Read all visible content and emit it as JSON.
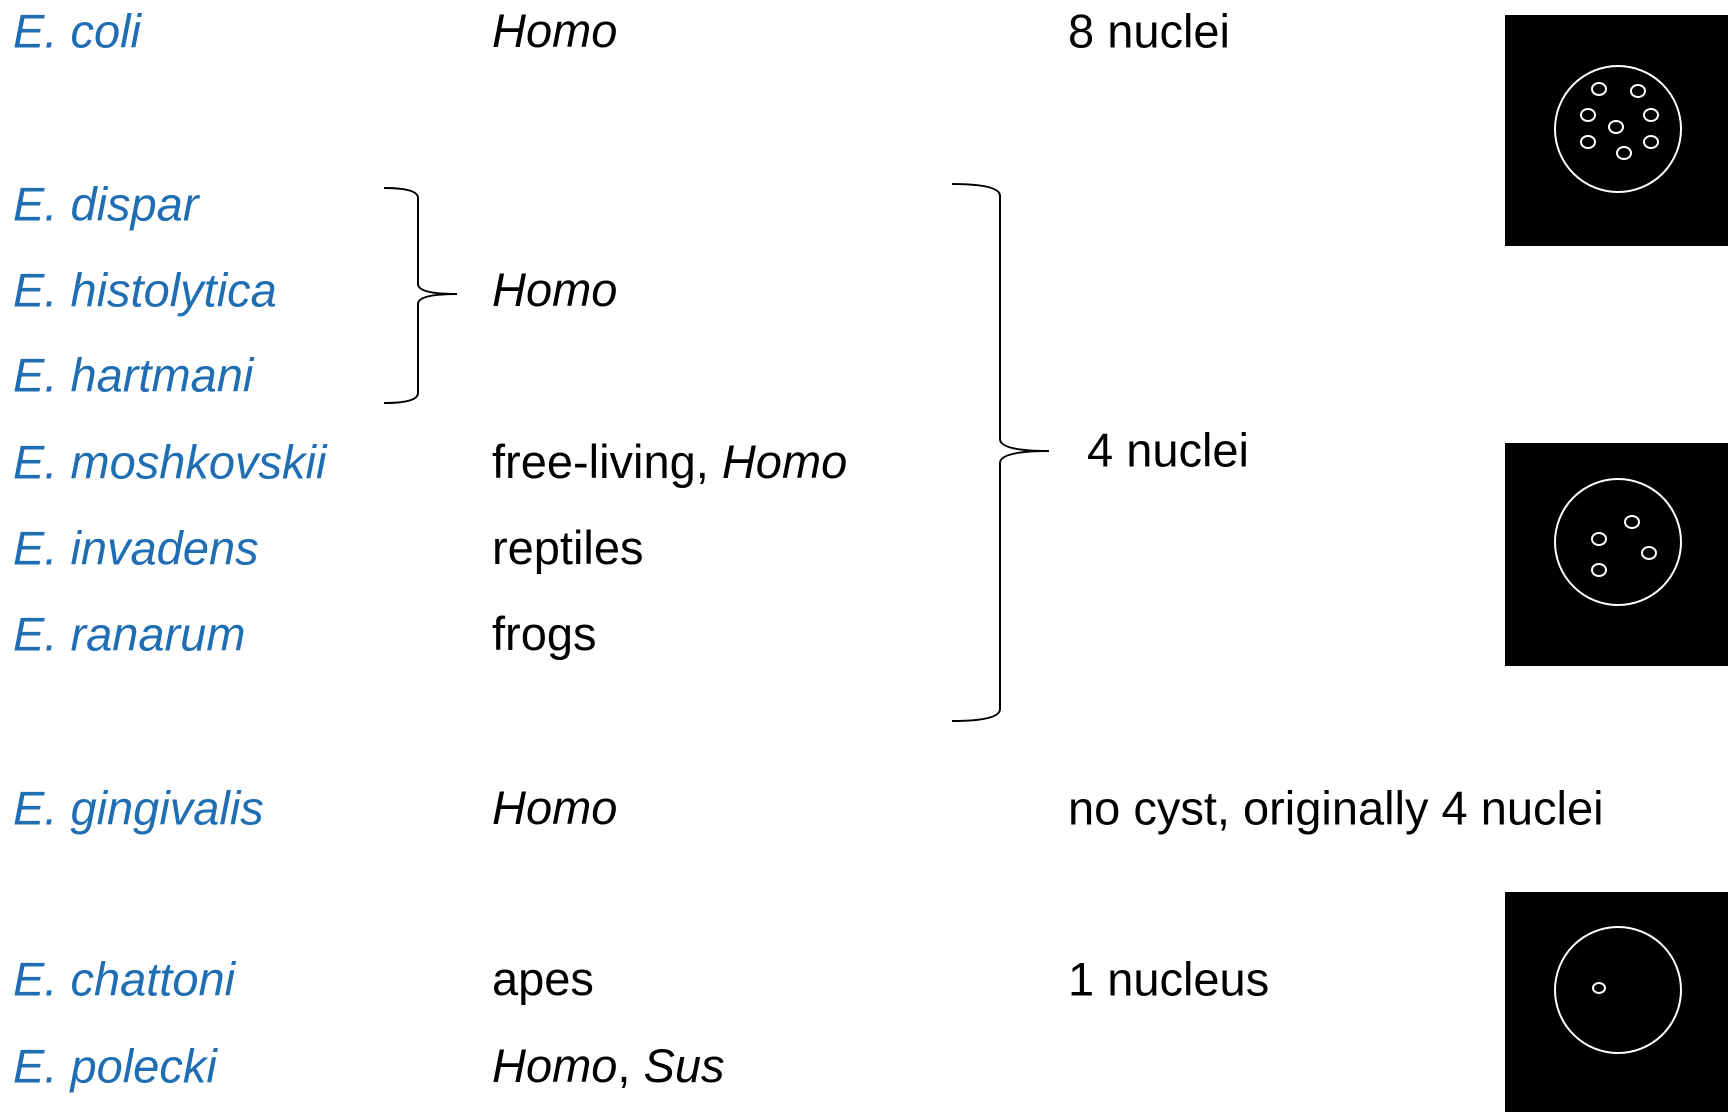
{
  "rows": [
    {
      "species": "E. coli",
      "host": [
        {
          "text": "Homo",
          "italic": true
        }
      ],
      "nuclei": "8 nuclei"
    },
    {
      "species": "E. dispar"
    },
    {
      "species": "E. histolytica",
      "host": [
        {
          "text": "Homo",
          "italic": true
        }
      ]
    },
    {
      "species": "E. hartmani"
    },
    {
      "species": "E. moshkovskii",
      "host": [
        {
          "text": "free-living, ",
          "italic": false
        },
        {
          "text": "Homo",
          "italic": true
        }
      ]
    },
    {
      "species": "E. invadens",
      "host": [
        {
          "text": "reptiles",
          "italic": false
        }
      ]
    },
    {
      "species": "E. ranarum",
      "host": [
        {
          "text": "frogs",
          "italic": false
        }
      ]
    },
    {
      "species": "E. gingivalis",
      "host": [
        {
          "text": "Homo",
          "italic": true
        }
      ],
      "nuclei": "no cyst, originally 4 nuclei"
    },
    {
      "species": "E. chattoni",
      "host": [
        {
          "text": "apes",
          "italic": false
        }
      ],
      "nuclei": "1 nucleus"
    },
    {
      "species": "E. polecki",
      "host": [
        {
          "text": "Homo",
          "italic": true
        },
        {
          "text": ", ",
          "italic": false
        },
        {
          "text": "Sus",
          "italic": true
        }
      ]
    }
  ],
  "group_nuclei": "4 nuclei"
}
